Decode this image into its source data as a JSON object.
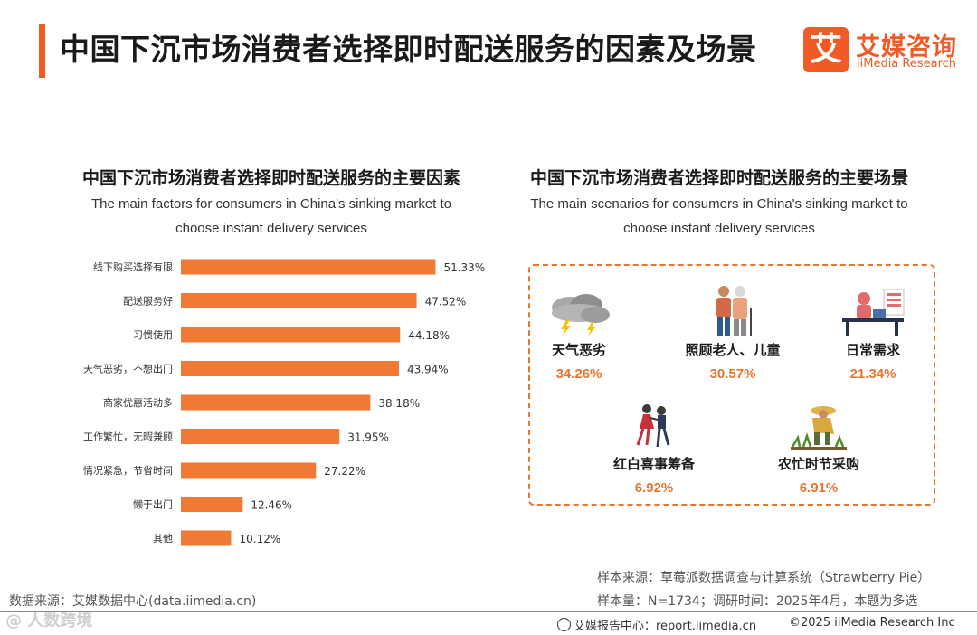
{
  "header": {
    "title": "中国下沉市场消费者选择即时配送服务的因素及场景",
    "logo_mark": "艾",
    "logo_cn": "艾媒咨询",
    "logo_en": "iiMedia Research"
  },
  "left_panel": {
    "title_cn": "中国下沉市场消费者选择即时配送服务的主要因素",
    "title_en_1": "The main factors for consumers in China's sinking market to",
    "title_en_2": "choose instant delivery services"
  },
  "right_panel": {
    "title_cn": "中国下沉市场消费者选择即时配送服务的主要场景",
    "title_en_1": "The main scenarios for consumers in China's sinking market to",
    "title_en_2": "choose instant delivery services",
    "scenarios": [
      {
        "label": "天气恶劣",
        "value": "34.26%",
        "icon": "storm-cloud-icon"
      },
      {
        "label": "照顾老人、儿童",
        "value": "30.57%",
        "icon": "elderly-care-icon"
      },
      {
        "label": "日常需求",
        "value": "21.34%",
        "icon": "desk-worker-icon"
      },
      {
        "label": "红白喜事筹备",
        "value": "6.92%",
        "icon": "dancing-couple-icon"
      },
      {
        "label": "农忙时节采购",
        "value": "6.91%",
        "icon": "farmer-icon"
      }
    ]
  },
  "chart_data": {
    "type": "bar",
    "orientation": "horizontal",
    "categories": [
      "线下购买选择有限",
      "配送服务好",
      "习惯使用",
      "天气恶劣，不想出门",
      "商家优惠活动多",
      "工作繁忙，无暇兼顾",
      "情况紧急，节省时间",
      "懒于出门",
      "其他"
    ],
    "values": [
      51.33,
      47.52,
      44.18,
      43.94,
      38.18,
      31.95,
      27.22,
      12.46,
      10.12
    ],
    "value_labels": [
      "51.33%",
      "47.52%",
      "44.18%",
      "43.94%",
      "38.18%",
      "31.95%",
      "27.22%",
      "12.46%",
      "10.12%"
    ],
    "unit": "%",
    "bar_color": "#ee7a35",
    "xlim": [
      0,
      60
    ],
    "grid": false
  },
  "notes": {
    "data_source": "数据来源：艾媒数据中心(data.iimedia.cn)",
    "sample_source": "样本来源：草莓派数据调查与计算系统（Strawberry Pie）",
    "sample_size": "样本量：N=1734；调研时间：2025年4月，本题为多选"
  },
  "footer": {
    "report_center": "艾媒报告中心：report.iimedia.cn",
    "copyright": "©2025  iiMedia Research  Inc",
    "watermark": "@ 人数跨境"
  },
  "colors": {
    "accent": "#f05a24",
    "bar": "#ee7a35",
    "value_text": "#e8752e"
  }
}
